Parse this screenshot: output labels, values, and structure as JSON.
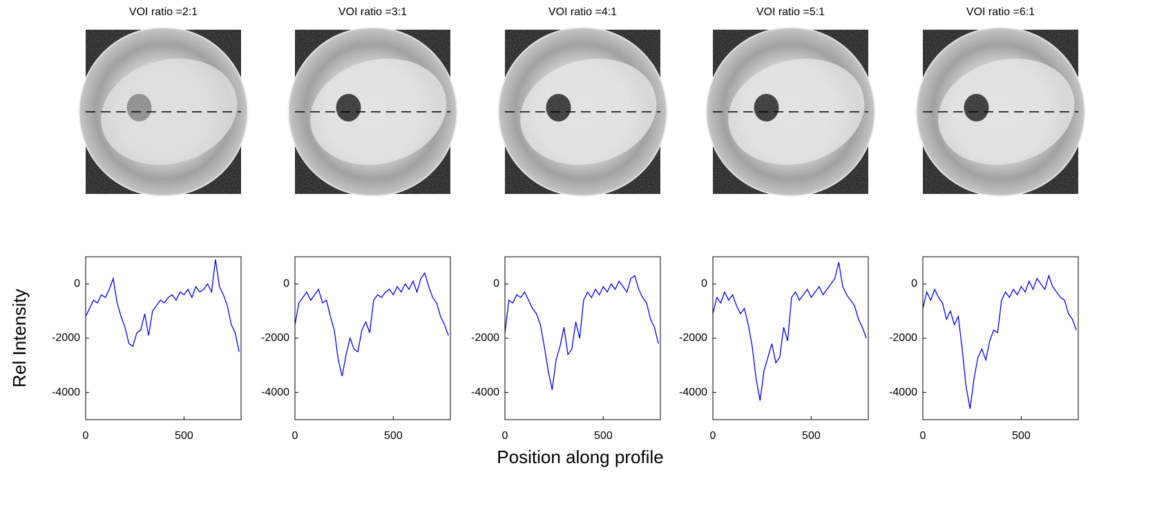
{
  "ylabel": "Rel Intensity",
  "xlabel": "Position along profile",
  "chart_data": [
    {
      "type": "line",
      "title": "VOI ratio =2:1",
      "xlim": [
        0,
        790
      ],
      "ylim": [
        -5000,
        1000
      ],
      "xticks": [
        0,
        500
      ],
      "yticks": [
        -4000,
        -2000,
        0
      ],
      "x": [
        0,
        20,
        40,
        60,
        80,
        100,
        120,
        140,
        160,
        180,
        200,
        220,
        240,
        260,
        280,
        300,
        320,
        340,
        360,
        380,
        400,
        420,
        440,
        460,
        480,
        500,
        520,
        540,
        560,
        580,
        600,
        620,
        640,
        660,
        680,
        700,
        720,
        740,
        760,
        780
      ],
      "series": [
        {
          "color": "#0000ff",
          "values": [
            -1200,
            -900,
            -600,
            -700,
            -400,
            -500,
            -200,
            200,
            -700,
            -1200,
            -1600,
            -2200,
            -2300,
            -1800,
            -1700,
            -1100,
            -1900,
            -1000,
            -800,
            -600,
            -700,
            -500,
            -400,
            -600,
            -300,
            -400,
            -200,
            -500,
            -100,
            -300,
            -200,
            0,
            -300,
            900,
            -100,
            -400,
            -800,
            -1500,
            -1800,
            -2500
          ]
        }
      ]
    },
    {
      "type": "line",
      "title": "VOI ratio =3:1",
      "xlim": [
        0,
        790
      ],
      "ylim": [
        -5000,
        1000
      ],
      "xticks": [
        0,
        500
      ],
      "yticks": [
        -4000,
        -2000,
        0
      ],
      "x": [
        0,
        20,
        40,
        60,
        80,
        100,
        120,
        140,
        160,
        180,
        200,
        220,
        240,
        260,
        280,
        300,
        320,
        340,
        360,
        380,
        400,
        420,
        440,
        460,
        480,
        500,
        520,
        540,
        560,
        580,
        600,
        620,
        640,
        660,
        680,
        700,
        720,
        740,
        760,
        780
      ],
      "series": [
        {
          "color": "#0000ff",
          "values": [
            -1500,
            -700,
            -500,
            -300,
            -600,
            -400,
            -200,
            -700,
            -600,
            -1200,
            -1700,
            -2800,
            -3400,
            -2600,
            -2000,
            -2400,
            -2500,
            -1700,
            -1400,
            -1800,
            -600,
            -400,
            -500,
            -300,
            -200,
            -400,
            -100,
            -300,
            0,
            -200,
            100,
            -300,
            200,
            400,
            -100,
            -500,
            -700,
            -1200,
            -1500,
            -1900
          ]
        }
      ]
    },
    {
      "type": "line",
      "title": "VOI ratio =4:1",
      "xlim": [
        0,
        790
      ],
      "ylim": [
        -5000,
        1000
      ],
      "xticks": [
        0,
        500
      ],
      "yticks": [
        -4000,
        -2000,
        0
      ],
      "x": [
        0,
        20,
        40,
        60,
        80,
        100,
        120,
        140,
        160,
        180,
        200,
        220,
        240,
        260,
        280,
        300,
        320,
        340,
        360,
        380,
        400,
        420,
        440,
        460,
        480,
        500,
        520,
        540,
        560,
        580,
        600,
        620,
        640,
        660,
        680,
        700,
        720,
        740,
        760,
        780
      ],
      "series": [
        {
          "color": "#0000ff",
          "values": [
            -1800,
            -600,
            -700,
            -400,
            -500,
            -300,
            -600,
            -900,
            -1100,
            -1500,
            -2300,
            -3200,
            -3900,
            -2800,
            -2300,
            -1600,
            -2600,
            -2400,
            -1400,
            -2000,
            -600,
            -300,
            -500,
            -200,
            -400,
            -100,
            -300,
            0,
            -200,
            100,
            -100,
            -300,
            200,
            300,
            -200,
            -500,
            -700,
            -1300,
            -1600,
            -2200
          ]
        }
      ]
    },
    {
      "type": "line",
      "title": "VOI ratio =5:1",
      "xlim": [
        0,
        790
      ],
      "ylim": [
        -5000,
        1000
      ],
      "xticks": [
        0,
        500
      ],
      "yticks": [
        -4000,
        -2000,
        0
      ],
      "x": [
        0,
        20,
        40,
        60,
        80,
        100,
        120,
        140,
        160,
        180,
        200,
        220,
        240,
        260,
        280,
        300,
        320,
        340,
        360,
        380,
        400,
        420,
        440,
        460,
        480,
        500,
        520,
        540,
        560,
        580,
        600,
        620,
        640,
        660,
        680,
        700,
        720,
        740,
        760,
        780
      ],
      "series": [
        {
          "color": "#0000ff",
          "values": [
            -1100,
            -500,
            -700,
            -300,
            -600,
            -400,
            -800,
            -1100,
            -900,
            -1500,
            -2300,
            -3500,
            -4300,
            -3200,
            -2700,
            -2200,
            -2900,
            -2700,
            -1600,
            -2100,
            -500,
            -300,
            -600,
            -400,
            -200,
            -500,
            -300,
            -100,
            -400,
            -200,
            0,
            200,
            800,
            -100,
            -400,
            -600,
            -800,
            -1300,
            -1600,
            -2000
          ]
        }
      ]
    },
    {
      "type": "line",
      "title": "VOI ratio =6:1",
      "xlim": [
        0,
        790
      ],
      "ylim": [
        -5000,
        1000
      ],
      "xticks": [
        0,
        500
      ],
      "yticks": [
        -4000,
        -2000,
        0
      ],
      "x": [
        0,
        20,
        40,
        60,
        80,
        100,
        120,
        140,
        160,
        180,
        200,
        220,
        240,
        260,
        280,
        300,
        320,
        340,
        360,
        380,
        400,
        420,
        440,
        460,
        480,
        500,
        520,
        540,
        560,
        580,
        600,
        620,
        640,
        660,
        680,
        700,
        720,
        740,
        760,
        780
      ],
      "series": [
        {
          "color": "#0000ff",
          "values": [
            -900,
            -300,
            -600,
            -200,
            -500,
            -700,
            -1300,
            -1000,
            -1500,
            -1200,
            -2400,
            -3800,
            -4600,
            -3500,
            -2700,
            -2400,
            -2800,
            -2100,
            -1700,
            -1800,
            -600,
            -300,
            -500,
            -200,
            -400,
            -100,
            -300,
            100,
            -200,
            200,
            0,
            -200,
            300,
            -100,
            -300,
            -500,
            -600,
            -1100,
            -1300,
            -1700
          ]
        }
      ]
    }
  ]
}
